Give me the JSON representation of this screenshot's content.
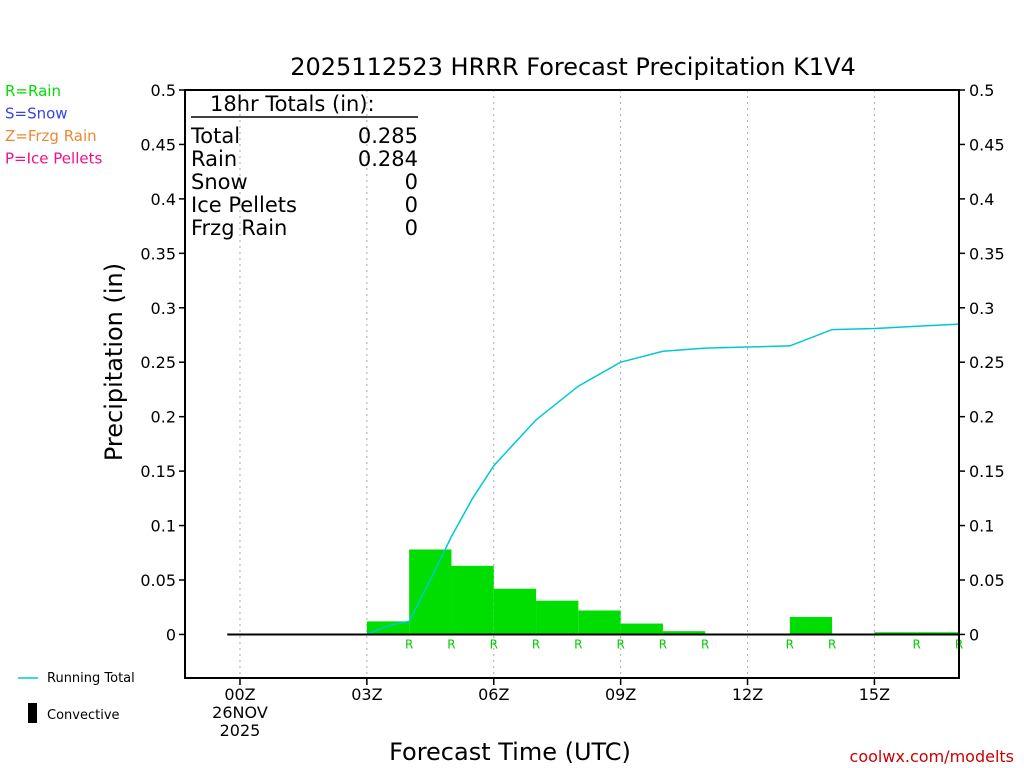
{
  "chart_data": {
    "type": "bar",
    "title": "2025112523 HRRR Forecast Precipitation K1V4",
    "xlabel": "Forecast Time (UTC)",
    "ylabel": "Precipitation (in)",
    "ylim": [
      -0.04,
      0.5
    ],
    "xlim": [
      -1.3,
      17
    ],
    "y_ticks": [
      0,
      0.05,
      0.1,
      0.15,
      0.2,
      0.25,
      0.3,
      0.35,
      0.4,
      0.45,
      0.5
    ],
    "y_tick_labels": [
      "0",
      "0.05",
      "0.1",
      "0.15",
      "0.2",
      "0.25",
      "0.3",
      "0.35",
      "0.4",
      "0.45",
      "0.5"
    ],
    "x_ticks": [
      {
        "hour": 0,
        "lines": [
          "00Z",
          "26NOV",
          "2025"
        ]
      },
      {
        "hour": 3,
        "lines": [
          "03Z"
        ]
      },
      {
        "hour": 6,
        "lines": [
          "06Z"
        ]
      },
      {
        "hour": 9,
        "lines": [
          "09Z"
        ]
      },
      {
        "hour": 12,
        "lines": [
          "12Z"
        ]
      },
      {
        "hour": 15,
        "lines": [
          "15Z"
        ]
      }
    ],
    "hourly_precip": {
      "hours": [
        1,
        2,
        3,
        4,
        5,
        6,
        7,
        8,
        9,
        10,
        11,
        12,
        13,
        14,
        15,
        16,
        17
      ],
      "values": [
        0,
        0,
        0,
        0.012,
        0.078,
        0.063,
        0.042,
        0.031,
        0.022,
        0.01,
        0.003,
        0,
        0,
        0.016,
        0,
        0.002,
        0.002
      ],
      "color": "#00dd00"
    },
    "running_total": {
      "name": "Running Total",
      "color": "#00c8d2",
      "x": [
        0,
        1,
        2,
        3,
        3.5,
        4,
        4.5,
        5,
        5.5,
        6,
        7,
        8,
        9,
        10,
        11,
        12,
        13,
        14,
        15,
        16,
        17
      ],
      "values": [
        0,
        0,
        0,
        0,
        0.008,
        0.012,
        0.05,
        0.09,
        0.125,
        0.155,
        0.197,
        0.228,
        0.25,
        0.26,
        0.263,
        0.264,
        0.265,
        0.28,
        0.281,
        0.283,
        0.285
      ]
    },
    "ptype_markers": {
      "hours": [
        4,
        5,
        6,
        7,
        8,
        9,
        10,
        11,
        13,
        14,
        16,
        17
      ],
      "label": "R",
      "color": "#00cc00"
    }
  },
  "totals_box": {
    "header": "18hr Totals (in):",
    "rows": [
      {
        "label": "Total",
        "value": "0.285"
      },
      {
        "label": "Rain",
        "value": "0.284"
      },
      {
        "label": "Snow",
        "value": "0"
      },
      {
        "label": "Ice Pellets",
        "value": "0"
      },
      {
        "label": "Frzg Rain",
        "value": "0"
      }
    ]
  },
  "ptype_legend": [
    {
      "text": "R=Rain",
      "color": "#00dd00"
    },
    {
      "text": "S=Snow",
      "color": "#3344ee"
    },
    {
      "text": "Z=Frzg Rain",
      "color": "#ee8833"
    },
    {
      "text": "P=Ice Pellets",
      "color": "#ee1188"
    }
  ],
  "series_legend": {
    "running_total_label": "Running Total",
    "convective_label": "Convective"
  },
  "credit": "coolwx.com/modelts"
}
